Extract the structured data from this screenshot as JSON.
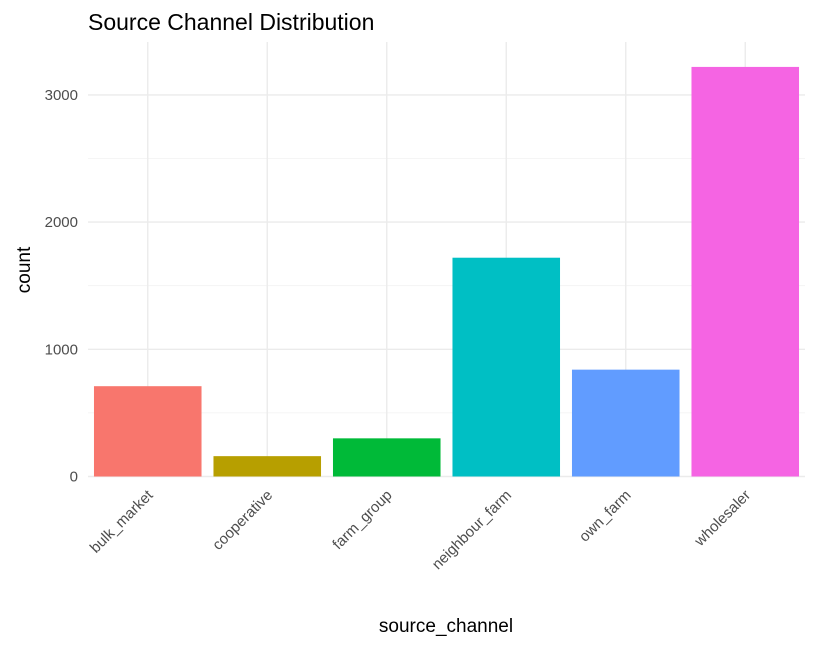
{
  "chart_data": {
    "type": "bar",
    "title": "Source Channel Distribution",
    "xlabel": "source_channel",
    "ylabel": "count",
    "categories": [
      "bulk_market",
      "cooperative",
      "farm_group",
      "neighbour_farm",
      "own_farm",
      "wholesaler"
    ],
    "values": [
      710,
      160,
      300,
      1720,
      840,
      3220
    ],
    "colors": [
      "#F8766D",
      "#B79F00",
      "#00BA38",
      "#00BFC4",
      "#619CFF",
      "#F564E3"
    ],
    "yticks": [
      0,
      1000,
      2000,
      3000
    ],
    "yticks_labels": [
      "0",
      "1000",
      "2000",
      "3000"
    ],
    "ylim": [
      0,
      3380
    ],
    "grid": true,
    "legend": "none"
  }
}
